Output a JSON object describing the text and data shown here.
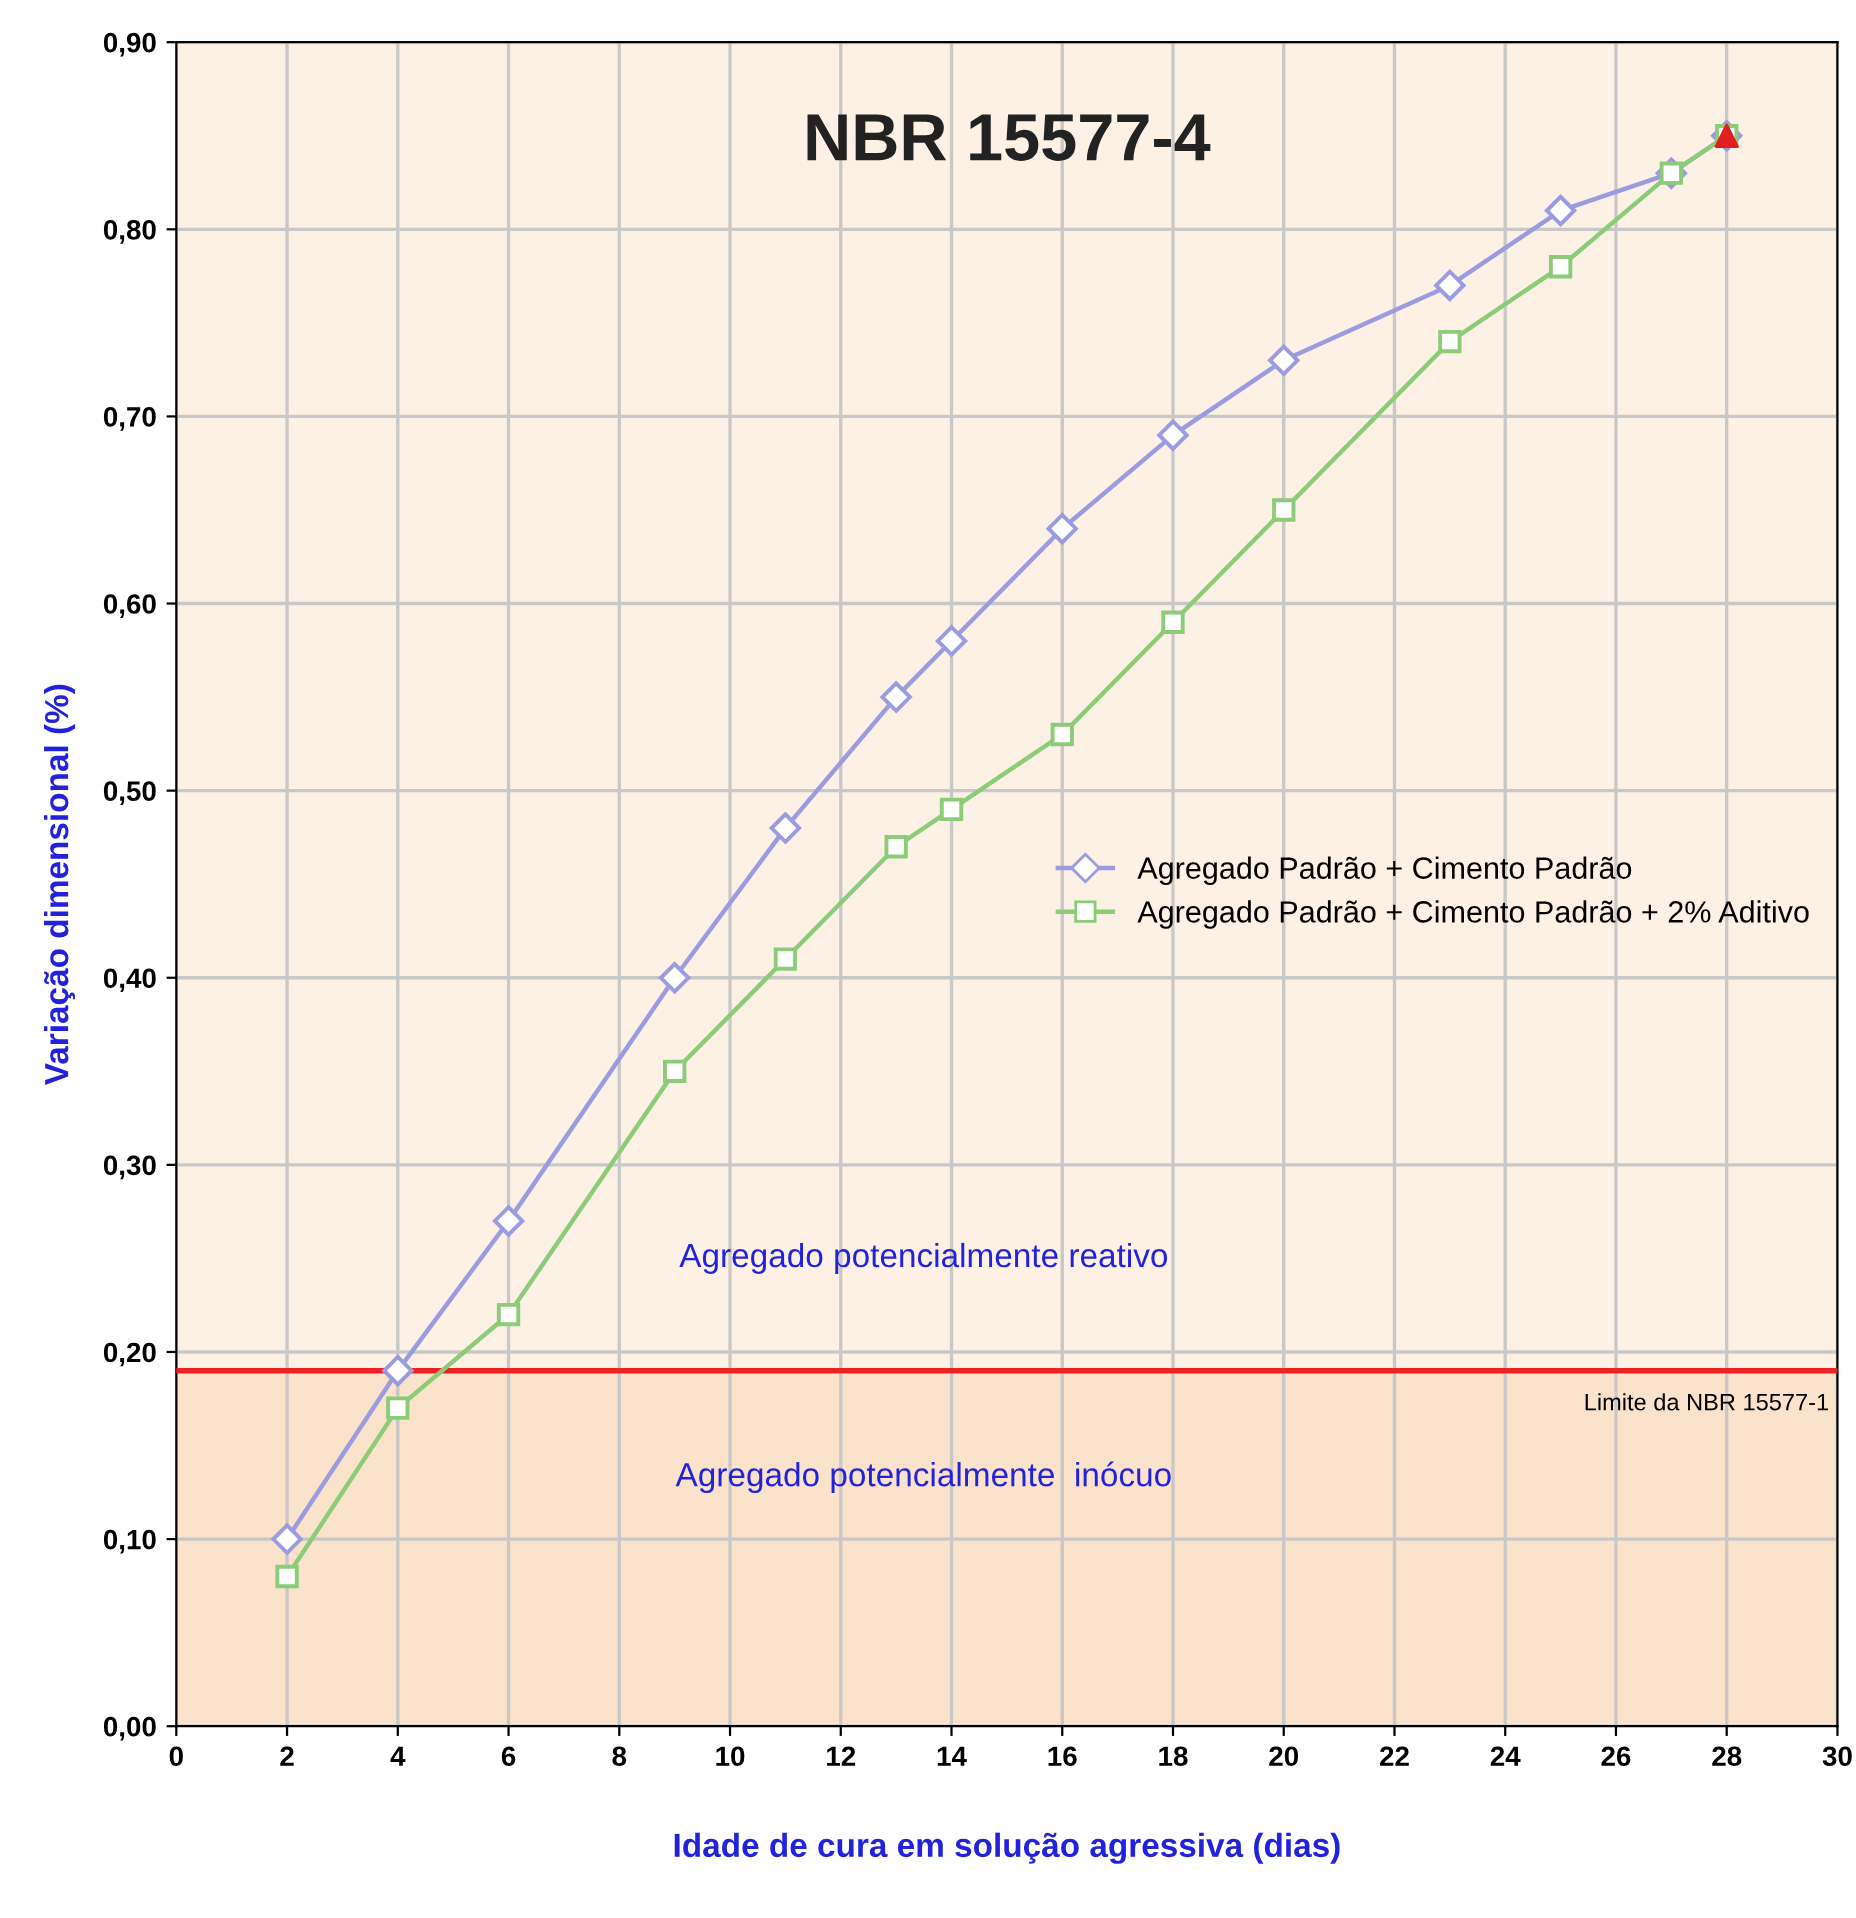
{
  "chart_data": {
    "type": "line",
    "title": "NBR 15577-4",
    "xlabel": "Idade de cura em solução agressiva (dias)",
    "ylabel": "Variação dimensional (%)",
    "series": [
      {
        "name": "Agregado Padrão + Cimento Padrão",
        "color": "#9b9be0",
        "marker": "diamond",
        "x": [
          2,
          4,
          6,
          9,
          11,
          13,
          14,
          16,
          18,
          20,
          23,
          25,
          27,
          28
        ],
        "values": [
          0.1,
          0.19,
          0.27,
          0.4,
          0.48,
          0.55,
          0.58,
          0.64,
          0.69,
          0.73,
          0.77,
          0.81,
          0.83,
          0.85
        ]
      },
      {
        "name": "Agregado Padrão + Cimento Padrão + 2% Aditivo",
        "color": "#8ccc78",
        "marker": "square",
        "x": [
          2,
          4,
          6,
          9,
          11,
          13,
          14,
          16,
          18,
          20,
          23,
          25,
          27,
          28
        ],
        "values": [
          0.08,
          0.17,
          0.22,
          0.35,
          0.41,
          0.47,
          0.49,
          0.53,
          0.59,
          0.65,
          0.74,
          0.78,
          0.83,
          0.85
        ]
      },
      {
        "type": "scatter",
        "color": "#e02020",
        "marker": "triangle",
        "x": [
          28
        ],
        "values": [
          0.85
        ]
      }
    ],
    "xlim": [
      0,
      30
    ],
    "xticks": [
      0,
      2,
      4,
      6,
      8,
      10,
      12,
      14,
      16,
      18,
      20,
      22,
      24,
      26,
      28,
      30
    ],
    "ylim": [
      0,
      0.9
    ],
    "yticks": [
      {
        "value": 0,
        "label": "0,00"
      },
      {
        "value": 0.1,
        "label": "0,10"
      },
      {
        "value": 0.2,
        "label": "0,20"
      },
      {
        "value": 0.3,
        "label": "0,30"
      },
      {
        "value": 0.4,
        "label": "0,40"
      },
      {
        "value": 0.5,
        "label": "0,50"
      },
      {
        "value": 0.6,
        "label": "0,60"
      },
      {
        "value": 0.7,
        "label": "0,70"
      },
      {
        "value": 0.8,
        "label": "0,80"
      },
      {
        "value": 0.9,
        "label": "0,90"
      }
    ],
    "ref_lines": [
      {
        "axis": "y",
        "value": 0.19,
        "label": "Limite da NBR 15577-1",
        "color": "#ee2222"
      }
    ],
    "bands": [
      {
        "axis": "y",
        "from": 0,
        "to": 0.19,
        "label": "Agregado potencialmente  inócuo",
        "color": "#fbe3cb"
      },
      {
        "axis": "y",
        "from": 0.19,
        "to": 0.9,
        "label": "Agregado potencialmente reativo",
        "color": "#fdf1e6"
      }
    ],
    "grid": true,
    "legend": "center right"
  }
}
